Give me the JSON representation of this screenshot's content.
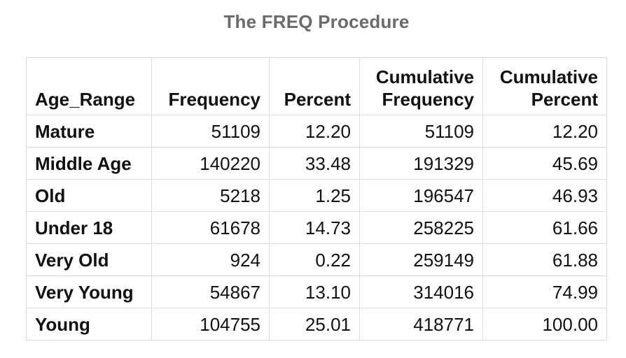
{
  "title": "The FREQ Procedure",
  "table": {
    "headers": {
      "age_range": "Age_Range",
      "frequency": "Frequency",
      "percent": "Percent",
      "cum_frequency_line1": "Cumulative",
      "cum_frequency_line2": "Frequency",
      "cum_percent_line1": "Cumulative",
      "cum_percent_line2": "Percent"
    },
    "rows": [
      {
        "age_range": "Mature",
        "frequency": "51109",
        "percent": "12.20",
        "cum_frequency": "51109",
        "cum_percent": "12.20"
      },
      {
        "age_range": "Middle Age",
        "frequency": "140220",
        "percent": "33.48",
        "cum_frequency": "191329",
        "cum_percent": "45.69"
      },
      {
        "age_range": "Old",
        "frequency": "5218",
        "percent": "1.25",
        "cum_frequency": "196547",
        "cum_percent": "46.93"
      },
      {
        "age_range": "Under 18",
        "frequency": "61678",
        "percent": "14.73",
        "cum_frequency": "258225",
        "cum_percent": "61.66"
      },
      {
        "age_range": "Very Old",
        "frequency": "924",
        "percent": "0.22",
        "cum_frequency": "259149",
        "cum_percent": "61.88"
      },
      {
        "age_range": "Very Young",
        "frequency": "54867",
        "percent": "13.10",
        "cum_frequency": "314016",
        "cum_percent": "74.99"
      },
      {
        "age_range": "Young",
        "frequency": "104755",
        "percent": "25.01",
        "cum_frequency": "418771",
        "cum_percent": "100.00"
      }
    ]
  }
}
